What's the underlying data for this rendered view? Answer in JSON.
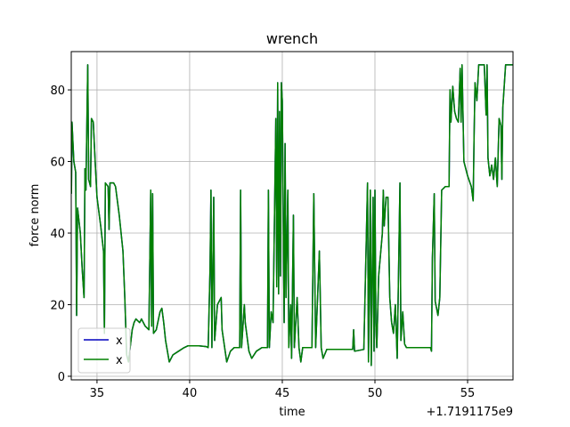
{
  "chart_data": {
    "type": "line",
    "title": "wrench",
    "x_label": "time",
    "y_label": "force norm",
    "x_offset_label": "+1.7191175e9",
    "x": [
      33.62,
      33.65,
      33.75,
      33.85,
      33.9,
      33.95,
      34.1,
      34.2,
      34.3,
      34.35,
      34.4,
      34.5,
      34.55,
      34.65,
      34.7,
      34.8,
      34.9,
      35.0,
      35.2,
      35.35,
      35.4,
      35.45,
      35.6,
      35.65,
      35.7,
      35.9,
      36.0,
      36.2,
      36.4,
      36.5,
      36.6,
      36.7,
      36.9,
      37.0,
      37.1,
      37.3,
      37.4,
      37.6,
      37.8,
      37.9,
      37.95,
      38.0,
      38.05,
      38.2,
      38.4,
      38.5,
      38.6,
      38.7,
      38.9,
      39.1,
      39.4,
      39.7,
      39.9,
      40.2,
      40.5,
      40.9,
      41.0,
      41.1,
      41.15,
      41.2,
      41.3,
      41.35,
      41.5,
      41.7,
      41.75,
      42.0,
      42.2,
      42.4,
      42.7,
      42.75,
      42.8,
      42.95,
      43.0,
      43.2,
      43.35,
      43.6,
      43.9,
      44.2,
      44.25,
      44.3,
      44.4,
      44.5,
      44.65,
      44.7,
      44.75,
      44.8,
      44.85,
      44.9,
      44.95,
      45.0,
      45.1,
      45.15,
      45.2,
      45.3,
      45.35,
      45.45,
      45.5,
      45.6,
      45.65,
      45.8,
      45.9,
      46.0,
      46.1,
      46.6,
      46.7,
      46.8,
      47.0,
      47.05,
      47.1,
      47.2,
      47.4,
      48.0,
      48.6,
      48.8,
      48.85,
      48.9,
      49.4,
      49.6,
      49.65,
      49.75,
      49.8,
      49.9,
      49.95,
      50.0,
      50.05,
      50.1,
      50.2,
      50.4,
      50.45,
      50.5,
      50.6,
      50.7,
      50.8,
      50.9,
      51.0,
      51.1,
      51.2,
      51.35,
      51.4,
      51.5,
      51.6,
      51.7,
      52.0,
      52.5,
      53.0,
      53.05,
      53.1,
      53.2,
      53.25,
      53.4,
      53.5,
      53.6,
      53.8,
      54.0,
      54.05,
      54.1,
      54.2,
      54.3,
      54.4,
      54.5,
      54.6,
      54.65,
      54.7,
      54.8,
      55.0,
      55.2,
      55.3,
      55.35,
      55.4,
      55.5,
      55.6,
      55.9,
      56.0,
      56.05,
      56.1,
      56.2,
      56.3,
      56.4,
      56.5,
      56.6,
      56.7,
      56.8,
      56.85,
      56.9,
      57.05,
      57.45
    ],
    "series": [
      {
        "name": "x",
        "color": "#0000bf",
        "values": [
          51,
          71,
          60,
          57,
          17,
          47,
          40,
          30,
          22,
          58,
          52,
          87,
          55,
          53,
          72,
          71,
          60,
          50,
          42,
          35,
          12,
          54,
          53,
          41,
          54,
          54,
          53,
          45,
          35,
          22,
          6,
          4,
          13,
          15,
          16,
          15,
          16,
          14,
          13,
          52,
          14,
          51,
          12,
          13,
          18,
          19,
          15,
          10,
          4,
          6,
          7,
          8,
          8.5,
          8.5,
          8.5,
          8.3,
          8,
          30,
          52,
          8,
          50,
          10,
          20,
          22,
          13,
          4,
          7,
          8,
          8,
          52,
          8,
          20,
          15,
          7,
          5,
          7,
          8,
          8,
          52,
          8,
          18,
          15,
          72,
          25,
          82,
          23,
          74,
          28,
          82,
          77,
          15,
          65,
          22,
          52,
          8,
          20,
          5,
          45,
          8,
          22,
          8,
          4,
          8,
          8,
          51,
          8,
          35,
          22,
          8,
          5,
          7.5,
          7.5,
          7.5,
          7.5,
          13,
          7,
          7.5,
          54,
          4,
          52,
          3,
          50,
          7,
          52,
          15,
          8,
          28,
          40,
          52,
          42,
          50,
          50,
          22,
          15,
          12,
          20,
          5,
          54,
          10,
          18,
          9,
          8,
          8,
          8,
          8,
          7,
          33,
          51,
          21,
          17,
          22,
          52,
          53,
          53,
          80,
          71,
          81,
          74,
          72,
          71,
          86,
          71,
          87,
          60,
          56,
          53,
          49,
          67,
          82,
          77,
          87,
          87,
          73,
          87,
          61,
          56,
          59,
          55,
          61,
          53,
          72,
          70,
          55,
          75,
          87,
          87
        ]
      },
      {
        "name": "x",
        "color": "#008000",
        "values": [
          51,
          71,
          60,
          57,
          17,
          47,
          40,
          30,
          22,
          58,
          52,
          87,
          55,
          53,
          72,
          71,
          60,
          50,
          42,
          35,
          12,
          54,
          53,
          41,
          54,
          54,
          53,
          45,
          35,
          22,
          6,
          4,
          13,
          15,
          16,
          15,
          16,
          14,
          13,
          52,
          14,
          51,
          12,
          13,
          18,
          19,
          15,
          10,
          4,
          6,
          7,
          8,
          8.5,
          8.5,
          8.5,
          8.3,
          8,
          30,
          52,
          8,
          50,
          10,
          20,
          22,
          13,
          4,
          7,
          8,
          8,
          52,
          8,
          20,
          15,
          7,
          5,
          7,
          8,
          8,
          52,
          8,
          18,
          15,
          72,
          25,
          82,
          23,
          74,
          28,
          82,
          77,
          15,
          65,
          22,
          52,
          8,
          20,
          5,
          45,
          8,
          22,
          8,
          4,
          8,
          8,
          51,
          8,
          35,
          22,
          8,
          5,
          7.5,
          7.5,
          7.5,
          7.5,
          13,
          7,
          7.5,
          54,
          4,
          52,
          3,
          50,
          7,
          52,
          15,
          8,
          28,
          40,
          52,
          42,
          50,
          50,
          22,
          15,
          12,
          20,
          5,
          54,
          10,
          18,
          9,
          8,
          8,
          8,
          8,
          7,
          33,
          51,
          21,
          17,
          22,
          52,
          53,
          53,
          80,
          71,
          81,
          74,
          72,
          71,
          86,
          71,
          87,
          60,
          56,
          53,
          49,
          67,
          82,
          77,
          87,
          87,
          73,
          87,
          61,
          56,
          59,
          55,
          61,
          53,
          72,
          70,
          55,
          75,
          87,
          87
        ]
      }
    ],
    "xlim": [
      33.61,
      57.45
    ],
    "ylim": [
      -1,
      90.7
    ],
    "xticks": [
      35,
      40,
      45,
      50,
      55
    ],
    "yticks": [
      0,
      20,
      40,
      60,
      80
    ],
    "grid": true,
    "legend": "lower left"
  }
}
